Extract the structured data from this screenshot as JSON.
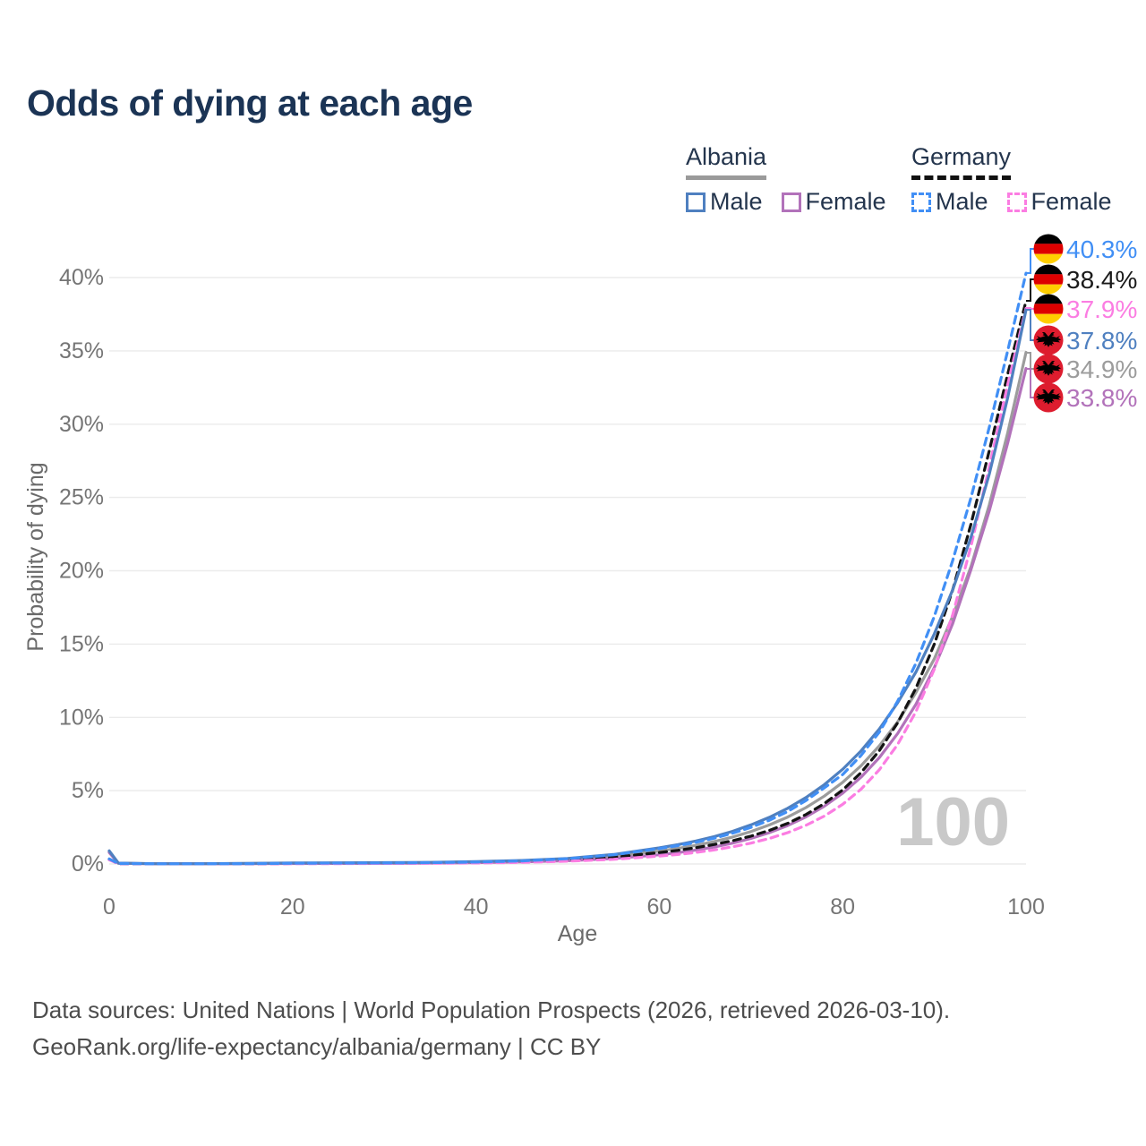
{
  "title": "Odds of dying at each age",
  "legend": {
    "groups": [
      {
        "label": "Albania",
        "style": "solid",
        "items": [
          {
            "label": "Male"
          },
          {
            "label": "Female"
          }
        ]
      },
      {
        "label": "Germany",
        "style": "dashed",
        "items": [
          {
            "label": "Male"
          },
          {
            "label": "Female"
          }
        ]
      }
    ]
  },
  "watermark": "100",
  "footer": {
    "line1": "Data sources: United Nations | World Population Prospects (2026, retrieved 2026-03-10).",
    "line2": "GeoRank.org/life-expectancy/albania/germany | CC BY"
  },
  "colors": {
    "albania_male": "#4f80c0",
    "albania_female": "#b272ba",
    "albania_both": "#9c9c9c",
    "germany_male": "#418ff5",
    "germany_female": "#fb7de2",
    "germany_both": "#141414",
    "title": "#1b3455",
    "gridline": "#ebebeb",
    "tick_text": "#757575",
    "watermark": "#c9c9c9",
    "albania_flag_red": "#dd1c2e",
    "germany_flag_red": "#dd0000",
    "germany_flag_gold": "#ffce00"
  },
  "chart_data": {
    "type": "line",
    "title": "Odds of dying at each age",
    "xlabel": "Age",
    "ylabel": "Probability of dying",
    "xlim": [
      0,
      100
    ],
    "ylim": [
      0,
      43
    ],
    "x_ticks": [
      "0",
      "20",
      "40",
      "60",
      "80",
      "100"
    ],
    "y_ticks": [
      "0%",
      "5%",
      "10%",
      "15%",
      "20%",
      "25%",
      "30%",
      "35%",
      "40%"
    ],
    "grid": "horizontal-only",
    "legend_position": "top-right",
    "series": [
      {
        "id": "germany-male",
        "name": "Germany Male",
        "color": "#418ff5",
        "dashed": true,
        "z": 6,
        "flag": "germany",
        "end_label": "40.3%",
        "end_value": 40.3,
        "points": [
          [
            0,
            0.35
          ],
          [
            1,
            0.03
          ],
          [
            5,
            0.01
          ],
          [
            10,
            0.01
          ],
          [
            15,
            0.02
          ],
          [
            20,
            0.05
          ],
          [
            25,
            0.06
          ],
          [
            30,
            0.07
          ],
          [
            35,
            0.09
          ],
          [
            40,
            0.13
          ],
          [
            45,
            0.21
          ],
          [
            50,
            0.36
          ],
          [
            55,
            0.62
          ],
          [
            60,
            1.05
          ],
          [
            62,
            1.25
          ],
          [
            64,
            1.48
          ],
          [
            66,
            1.76
          ],
          [
            68,
            2.1
          ],
          [
            70,
            2.5
          ],
          [
            72,
            2.98
          ],
          [
            74,
            3.58
          ],
          [
            76,
            4.33
          ],
          [
            78,
            5.2
          ],
          [
            80,
            6.1
          ],
          [
            82,
            7.4
          ],
          [
            84,
            9.0
          ],
          [
            86,
            11.1
          ],
          [
            88,
            13.7
          ],
          [
            90,
            16.9
          ],
          [
            92,
            20.7
          ],
          [
            94,
            25.0
          ],
          [
            96,
            29.8
          ],
          [
            98,
            35.0
          ],
          [
            100,
            40.3
          ]
        ]
      },
      {
        "id": "germany-both",
        "name": "Germany",
        "color": "#141414",
        "dashed": true,
        "z": 3,
        "flag": "germany",
        "end_label": "38.4%",
        "end_value": 38.4,
        "points": [
          [
            0,
            0.32
          ],
          [
            1,
            0.02
          ],
          [
            5,
            0.01
          ],
          [
            10,
            0.01
          ],
          [
            15,
            0.015
          ],
          [
            20,
            0.035
          ],
          [
            25,
            0.045
          ],
          [
            30,
            0.055
          ],
          [
            35,
            0.07
          ],
          [
            40,
            0.1
          ],
          [
            45,
            0.16
          ],
          [
            50,
            0.27
          ],
          [
            55,
            0.46
          ],
          [
            60,
            0.78
          ],
          [
            62,
            0.93
          ],
          [
            64,
            1.11
          ],
          [
            66,
            1.33
          ],
          [
            68,
            1.59
          ],
          [
            70,
            1.9
          ],
          [
            72,
            2.29
          ],
          [
            74,
            2.77
          ],
          [
            76,
            3.37
          ],
          [
            78,
            4.12
          ],
          [
            80,
            5.05
          ],
          [
            82,
            6.23
          ],
          [
            84,
            7.73
          ],
          [
            86,
            9.63
          ],
          [
            88,
            12.0
          ],
          [
            90,
            15.0
          ],
          [
            92,
            18.7
          ],
          [
            94,
            23.2
          ],
          [
            96,
            28.2
          ],
          [
            98,
            33.4
          ],
          [
            100,
            38.4
          ]
        ]
      },
      {
        "id": "germany-female",
        "name": "Germany Female",
        "color": "#fb7de2",
        "dashed": true,
        "z": 4,
        "flag": "germany",
        "end_label": "37.9%",
        "end_value": 37.9,
        "points": [
          [
            0,
            0.28
          ],
          [
            1,
            0.02
          ],
          [
            5,
            0.008
          ],
          [
            10,
            0.008
          ],
          [
            15,
            0.012
          ],
          [
            20,
            0.02
          ],
          [
            25,
            0.025
          ],
          [
            30,
            0.035
          ],
          [
            35,
            0.05
          ],
          [
            40,
            0.07
          ],
          [
            45,
            0.11
          ],
          [
            50,
            0.19
          ],
          [
            55,
            0.32
          ],
          [
            60,
            0.54
          ],
          [
            62,
            0.65
          ],
          [
            64,
            0.79
          ],
          [
            66,
            0.96
          ],
          [
            68,
            1.17
          ],
          [
            70,
            1.42
          ],
          [
            72,
            1.74
          ],
          [
            74,
            2.14
          ],
          [
            76,
            2.64
          ],
          [
            78,
            3.27
          ],
          [
            80,
            4.07
          ],
          [
            82,
            5.1
          ],
          [
            84,
            6.43
          ],
          [
            86,
            8.15
          ],
          [
            88,
            10.4
          ],
          [
            90,
            13.3
          ],
          [
            92,
            17.0
          ],
          [
            94,
            21.7
          ],
          [
            96,
            27.1
          ],
          [
            98,
            32.7
          ],
          [
            100,
            37.9
          ]
        ]
      },
      {
        "id": "albania-male",
        "name": "Albania Male",
        "color": "#4f80c0",
        "dashed": false,
        "z": 5,
        "flag": "albania",
        "end_label": "37.8%",
        "end_value": 37.8,
        "points": [
          [
            0,
            0.9
          ],
          [
            1,
            0.06
          ],
          [
            5,
            0.02
          ],
          [
            10,
            0.02
          ],
          [
            15,
            0.04
          ],
          [
            20,
            0.07
          ],
          [
            25,
            0.08
          ],
          [
            30,
            0.09
          ],
          [
            35,
            0.11
          ],
          [
            40,
            0.16
          ],
          [
            45,
            0.24
          ],
          [
            50,
            0.38
          ],
          [
            55,
            0.65
          ],
          [
            60,
            1.1
          ],
          [
            62,
            1.31
          ],
          [
            64,
            1.57
          ],
          [
            66,
            1.87
          ],
          [
            68,
            2.23
          ],
          [
            70,
            2.67
          ],
          [
            72,
            3.18
          ],
          [
            74,
            3.8
          ],
          [
            76,
            4.53
          ],
          [
            78,
            5.41
          ],
          [
            80,
            6.46
          ],
          [
            82,
            7.71
          ],
          [
            84,
            9.21
          ],
          [
            86,
            11.0
          ],
          [
            88,
            13.1
          ],
          [
            90,
            15.7
          ],
          [
            92,
            18.7
          ],
          [
            94,
            22.3
          ],
          [
            96,
            26.6
          ],
          [
            98,
            31.8
          ],
          [
            100,
            37.8
          ]
        ]
      },
      {
        "id": "albania-both",
        "name": "Albania",
        "color": "#9c9c9c",
        "dashed": false,
        "z": 1,
        "flag": "albania",
        "end_label": "34.9%",
        "end_value": 34.9,
        "points": [
          [
            0,
            0.85
          ],
          [
            1,
            0.05
          ],
          [
            5,
            0.02
          ],
          [
            10,
            0.02
          ],
          [
            15,
            0.03
          ],
          [
            20,
            0.05
          ],
          [
            25,
            0.06
          ],
          [
            30,
            0.07
          ],
          [
            35,
            0.09
          ],
          [
            40,
            0.13
          ],
          [
            45,
            0.19
          ],
          [
            50,
            0.3
          ],
          [
            55,
            0.52
          ],
          [
            60,
            0.88
          ],
          [
            62,
            1.06
          ],
          [
            64,
            1.27
          ],
          [
            66,
            1.53
          ],
          [
            68,
            1.84
          ],
          [
            70,
            2.21
          ],
          [
            72,
            2.66
          ],
          [
            74,
            3.2
          ],
          [
            76,
            3.85
          ],
          [
            78,
            4.63
          ],
          [
            80,
            5.57
          ],
          [
            82,
            6.7
          ],
          [
            84,
            8.06
          ],
          [
            86,
            9.69
          ],
          [
            88,
            11.7
          ],
          [
            90,
            14.0
          ],
          [
            92,
            16.9
          ],
          [
            94,
            20.3
          ],
          [
            96,
            24.5
          ],
          [
            98,
            29.4
          ],
          [
            100,
            34.9
          ]
        ]
      },
      {
        "id": "albania-female",
        "name": "Albania Female",
        "color": "#b272ba",
        "dashed": false,
        "z": 2,
        "flag": "albania",
        "end_label": "33.8%",
        "end_value": 33.8,
        "points": [
          [
            0,
            0.78
          ],
          [
            1,
            0.05
          ],
          [
            5,
            0.015
          ],
          [
            10,
            0.015
          ],
          [
            15,
            0.02
          ],
          [
            20,
            0.03
          ],
          [
            25,
            0.035
          ],
          [
            30,
            0.045
          ],
          [
            35,
            0.06
          ],
          [
            40,
            0.09
          ],
          [
            45,
            0.14
          ],
          [
            50,
            0.22
          ],
          [
            55,
            0.37
          ],
          [
            60,
            0.63
          ],
          [
            62,
            0.77
          ],
          [
            64,
            0.95
          ],
          [
            66,
            1.16
          ],
          [
            68,
            1.42
          ],
          [
            70,
            1.74
          ],
          [
            72,
            2.14
          ],
          [
            74,
            2.62
          ],
          [
            76,
            3.21
          ],
          [
            78,
            3.94
          ],
          [
            80,
            4.83
          ],
          [
            82,
            5.92
          ],
          [
            84,
            7.26
          ],
          [
            86,
            8.9
          ],
          [
            88,
            10.9
          ],
          [
            90,
            13.4
          ],
          [
            92,
            16.4
          ],
          [
            94,
            20.1
          ],
          [
            96,
            24.1
          ],
          [
            98,
            28.7
          ],
          [
            100,
            33.8
          ]
        ]
      }
    ]
  }
}
